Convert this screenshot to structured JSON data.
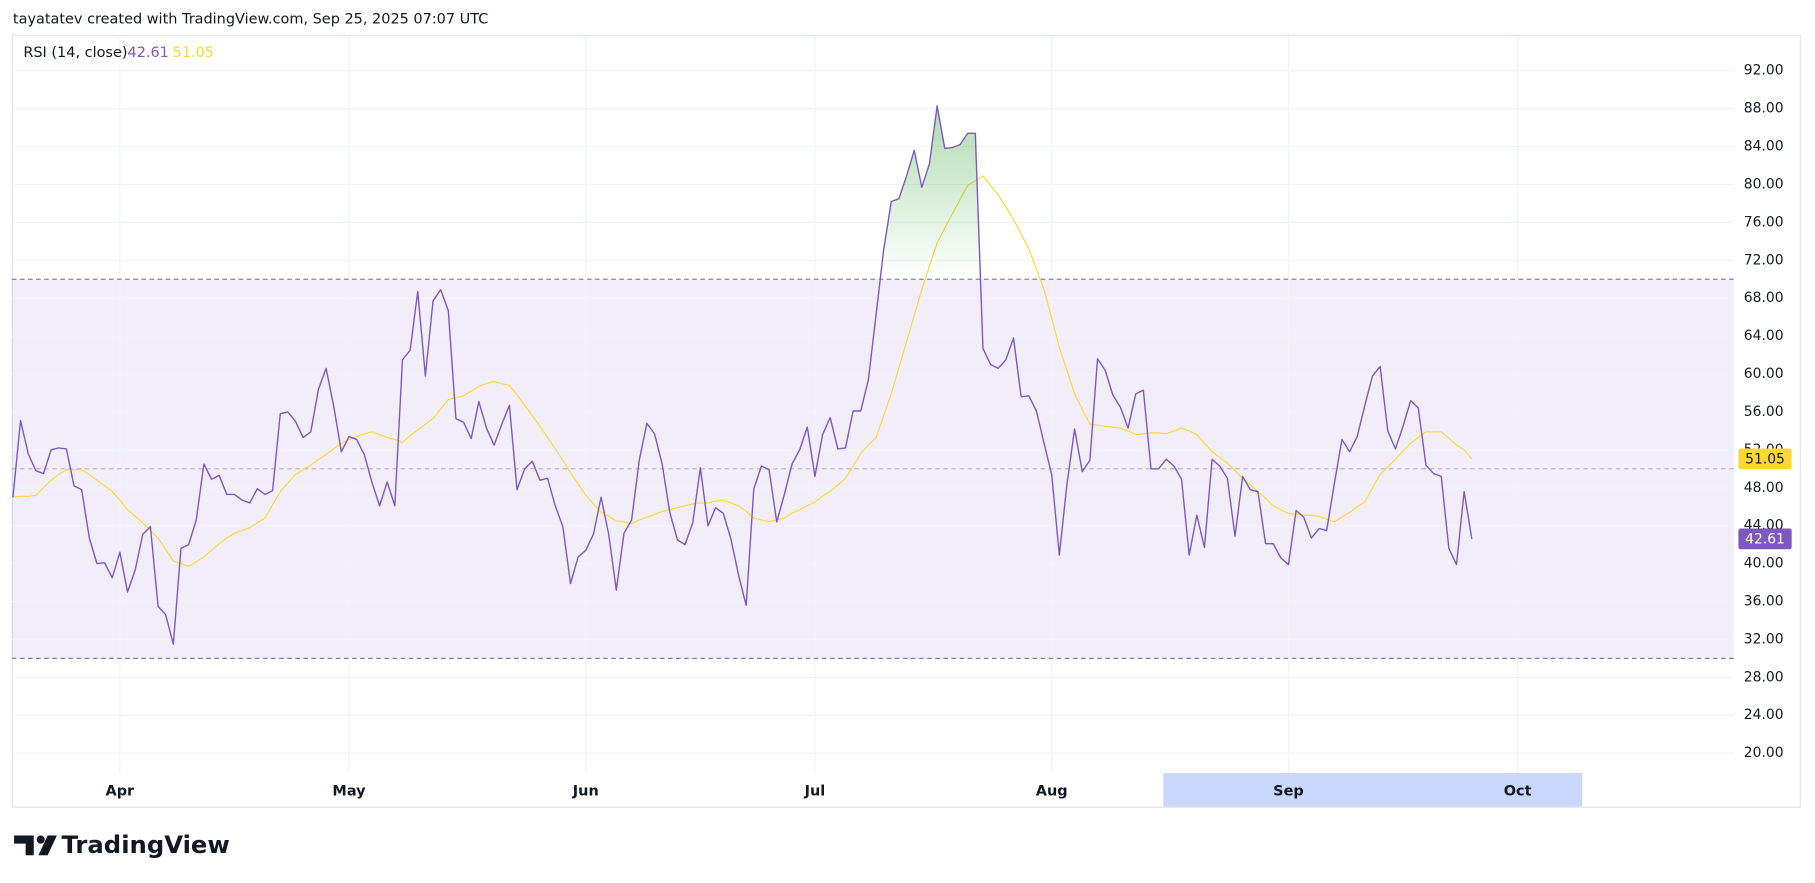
{
  "header": "tayatatev created with TradingView.com, Sep 25, 2025 07:07 UTC",
  "brand": "TradingView",
  "chart_data": {
    "type": "line",
    "categories": [
      null,
      null,
      null,
      null,
      null,
      null,
      null,
      null,
      null,
      null,
      null,
      null,
      null,
      null,
      "Apr",
      null,
      null,
      null,
      null,
      null,
      null,
      null,
      null,
      null,
      null,
      null,
      null,
      null,
      null,
      null,
      null,
      null,
      null,
      null,
      null,
      null,
      null,
      null,
      null,
      null,
      null,
      null,
      null,
      null,
      "May",
      null,
      null,
      null,
      null,
      null,
      null,
      null,
      null,
      null,
      null,
      null,
      null,
      null,
      null,
      null,
      null,
      null,
      null,
      null,
      null,
      null,
      null,
      null,
      null,
      null,
      null,
      null,
      null,
      null,
      null,
      "Jun",
      null,
      null,
      null,
      null,
      null,
      null,
      null,
      null,
      null,
      null,
      null,
      null,
      null,
      null,
      null,
      null,
      null,
      null,
      null,
      null,
      null,
      null,
      null,
      null,
      null,
      null,
      null,
      null,
      null,
      "Jul",
      null,
      null,
      null,
      null,
      null,
      null,
      null,
      null,
      null,
      null,
      null,
      null,
      null,
      null,
      null,
      null,
      null,
      null,
      null,
      null,
      null,
      null,
      null,
      null,
      null,
      null,
      null,
      null,
      null,
      null,
      "Aug",
      null,
      null,
      null,
      null,
      null,
      null,
      null,
      null,
      null,
      null,
      null,
      null,
      null,
      null,
      null,
      null,
      null,
      null,
      null,
      null,
      null,
      null,
      null,
      null,
      null,
      null,
      null,
      null,
      null,
      null,
      "Sep",
      null,
      null,
      null,
      null,
      null,
      null,
      null,
      null,
      null,
      null,
      null,
      null,
      null,
      null,
      null,
      null,
      null,
      null,
      null,
      null,
      null,
      null,
      null,
      null,
      null,
      null,
      null,
      null,
      null,
      "Oct"
    ],
    "series": [
      {
        "name": "RSI (14, close)",
        "color": "#7e57c2",
        "values": [
          47.0,
          55.1,
          51.6,
          49.8,
          49.5,
          52.0,
          52.2,
          52.1,
          48.2,
          47.8,
          42.7,
          40.0,
          40.1,
          38.5,
          41.2,
          37.0,
          39.3,
          43.1,
          43.9,
          35.5,
          34.6,
          31.5,
          41.6,
          42.0,
          44.6,
          50.5,
          48.9,
          49.3,
          47.3,
          47.3,
          46.7,
          46.4,
          47.9,
          47.3,
          47.7,
          55.8,
          56.0,
          55.0,
          53.3,
          53.9,
          58.4,
          60.6,
          56.6,
          51.8,
          53.4,
          53.1,
          51.5,
          48.6,
          46.1,
          48.6,
          46.1,
          61.5,
          62.5,
          68.7,
          59.8,
          67.7,
          68.9,
          66.7,
          55.3,
          54.9,
          53.2,
          57.1,
          54.3,
          52.5,
          54.7,
          56.7,
          47.8,
          50.0,
          50.8,
          48.8,
          49.0,
          46.1,
          43.9,
          37.9,
          40.7,
          41.4,
          43.1,
          47.0,
          43.1,
          37.2,
          43.2,
          44.6,
          50.9,
          54.8,
          53.7,
          50.5,
          45.4,
          42.5,
          42.0,
          44.3,
          50.1,
          44.0,
          45.9,
          45.3,
          42.6,
          38.8,
          35.6,
          47.9,
          50.3,
          49.9,
          44.4,
          47.3,
          50.5,
          52.0,
          54.4,
          49.2,
          53.6,
          55.4,
          52.1,
          52.2,
          56.1,
          56.1,
          59.4,
          66.2,
          73.1,
          78.2,
          78.5,
          80.9,
          83.6,
          79.7,
          82.2,
          88.3,
          83.8,
          83.9,
          84.2,
          85.4,
          85.4,
          62.7,
          61.0,
          60.6,
          61.5,
          63.8,
          57.6,
          57.7,
          56.1,
          52.7,
          49.4,
          40.9,
          48.4,
          54.2,
          49.7,
          50.9,
          61.6,
          60.4,
          57.8,
          56.5,
          54.3,
          57.9,
          58.3,
          50.0,
          50.0,
          51.0,
          50.3,
          48.9,
          40.9,
          45.1,
          41.7,
          51.0,
          50.3,
          49.0,
          42.9,
          49.2,
          47.8,
          47.6,
          42.1,
          42.1,
          40.6,
          39.9,
          45.6,
          44.9,
          42.7,
          43.7,
          43.5,
          48.4,
          53.1,
          51.8,
          53.4,
          56.7,
          59.8,
          60.8,
          54.0,
          52.1,
          54.5,
          57.2,
          56.4,
          50.4,
          49.5,
          49.2,
          41.6,
          39.9,
          47.6,
          42.61,
          null,
          null,
          null,
          null,
          null,
          null
        ]
      },
      {
        "color": "#fdd835",
        "values": [
          47.0,
          47.1,
          47.1,
          47.2,
          48.0,
          48.8,
          49.4,
          49.9,
          49.9,
          49.9,
          49.4,
          48.8,
          48.2,
          47.6,
          46.7,
          45.7,
          45.0,
          44.3,
          43.5,
          42.7,
          41.5,
          40.3,
          40.0,
          39.7,
          40.2,
          40.7,
          41.4,
          42.1,
          42.7,
          43.2,
          43.5,
          43.8,
          44.3,
          44.8,
          46.2,
          47.6,
          48.5,
          49.4,
          49.9,
          50.4,
          51.0,
          51.5,
          52.1,
          52.7,
          53.1,
          53.4,
          53.7,
          53.9,
          53.6,
          53.3,
          53.1,
          52.8,
          53.5,
          54.1,
          54.7,
          55.3,
          56.3,
          57.3,
          57.5,
          57.7,
          58.2,
          58.7,
          59.0,
          59.2,
          59.0,
          58.8,
          57.8,
          56.7,
          55.6,
          54.5,
          53.3,
          52.1,
          50.9,
          49.6,
          48.4,
          47.2,
          46.3,
          45.4,
          45.0,
          44.5,
          44.4,
          44.2,
          44.6,
          44.9,
          45.2,
          45.5,
          45.7,
          45.9,
          46.1,
          46.3,
          46.4,
          46.4,
          46.6,
          46.7,
          46.4,
          46.1,
          45.5,
          44.8,
          44.6,
          44.4,
          44.6,
          44.8,
          45.3,
          45.7,
          46.1,
          46.5,
          47.1,
          47.6,
          48.3,
          49.0,
          50.3,
          51.6,
          52.5,
          53.3,
          55.6,
          57.9,
          60.7,
          63.4,
          66.2,
          68.9,
          71.4,
          73.8,
          75.4,
          76.9,
          78.4,
          79.9,
          80.4,
          80.9,
          79.9,
          78.9,
          77.6,
          76.3,
          74.8,
          73.2,
          71.1,
          68.9,
          65.9,
          62.8,
          60.4,
          57.9,
          56.3,
          54.7,
          54.6,
          54.5,
          54.4,
          54.3,
          54.0,
          53.6,
          53.7,
          53.8,
          53.8,
          53.7,
          54.0,
          54.3,
          54.0,
          53.6,
          52.7,
          51.8,
          51.2,
          50.6,
          49.8,
          49.0,
          48.3,
          47.6,
          46.9,
          46.1,
          45.7,
          45.3,
          45.2,
          45.1,
          45.1,
          45.0,
          44.7,
          44.4,
          44.9,
          45.4,
          46.0,
          46.5,
          48.0,
          49.4,
          50.2,
          51.0,
          51.9,
          52.7,
          53.3,
          53.9,
          53.9,
          53.9,
          53.2,
          52.5,
          52.0,
          51.05,
          null,
          null,
          null,
          null,
          null,
          null
        ]
      }
    ],
    "ylim": [
      17.9,
      95.8
    ],
    "yticks": [
      {
        "value": 20,
        "label": "20.00"
      },
      {
        "value": 24,
        "label": "24.00"
      },
      {
        "value": 28,
        "label": "28.00"
      },
      {
        "value": 32,
        "label": "32.00"
      },
      {
        "value": 36,
        "label": "36.00"
      },
      {
        "value": 40,
        "label": "40.00"
      },
      {
        "value": 44,
        "label": "44.00"
      },
      {
        "value": 48,
        "label": "48.00"
      },
      {
        "value": 52,
        "label": "52.00"
      },
      {
        "value": 56,
        "label": "56.00"
      },
      {
        "value": 60,
        "label": "60.00"
      },
      {
        "value": 64,
        "label": "64.00"
      },
      {
        "value": 68,
        "label": "68.00"
      },
      {
        "value": 72,
        "label": "72.00"
      },
      {
        "value": 76,
        "label": "76.00"
      },
      {
        "value": 80,
        "label": "80.00"
      },
      {
        "value": 84,
        "label": "84.00"
      },
      {
        "value": 88,
        "label": "88.00"
      },
      {
        "value": 92,
        "label": "92.00"
      }
    ],
    "hlines": [
      70,
      50,
      30
    ],
    "band_color": "#7e57c2",
    "overbought_color": "#4caf50",
    "grid": true
  }
}
